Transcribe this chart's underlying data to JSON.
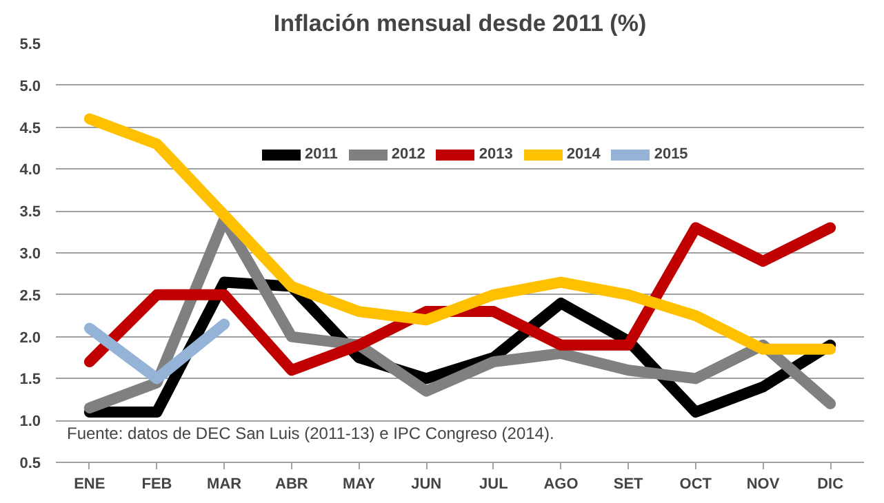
{
  "chart_data": {
    "type": "line",
    "title": "Inflación mensual desde 2011 (%)",
    "categories": [
      "ENE",
      "FEB",
      "MAR",
      "ABR",
      "MAY",
      "JUN",
      "JUL",
      "AGO",
      "SET",
      "OCT",
      "NOV",
      "DIC"
    ],
    "series": [
      {
        "name": "2011",
        "color": "#000000",
        "values": [
          1.1,
          1.1,
          2.65,
          2.6,
          1.75,
          1.5,
          1.75,
          2.4,
          1.95,
          1.1,
          1.4,
          1.9
        ]
      },
      {
        "name": "2012",
        "color": "#808080",
        "values": [
          1.15,
          1.45,
          3.4,
          2.0,
          1.9,
          1.35,
          1.7,
          1.8,
          1.6,
          1.5,
          1.9,
          1.2
        ]
      },
      {
        "name": "2013",
        "color": "#c00000",
        "values": [
          1.7,
          2.5,
          2.5,
          1.6,
          1.9,
          2.3,
          2.3,
          1.9,
          1.9,
          3.3,
          2.9,
          3.3
        ]
      },
      {
        "name": "2014",
        "color": "#ffc000",
        "values": [
          4.6,
          4.3,
          3.45,
          2.6,
          2.3,
          2.2,
          2.5,
          2.65,
          2.5,
          2.25,
          1.85,
          1.85
        ]
      },
      {
        "name": "2015",
        "color": "#95b3d7",
        "values": [
          2.1,
          1.5,
          2.15,
          null,
          null,
          null,
          null,
          null,
          null,
          null,
          null,
          null
        ]
      }
    ],
    "ylim": [
      0.5,
      5.5
    ],
    "yticks": [
      0.5,
      {
        "value": 1,
        "label": "1.0"
      },
      1.5,
      {
        "value": 2,
        "label": "2.0"
      },
      2.5,
      {
        "value": 3,
        "label": "3.0"
      },
      3.5,
      {
        "value": 4,
        "label": "4.0"
      },
      4.5,
      {
        "value": 5,
        "label": "5.0"
      },
      5.5
    ],
    "grid": "y",
    "legend": "top",
    "marker": "none",
    "annotations": [
      "Fuente: datos de DEC San Luis (2011-13) e IPC Congreso (2014)."
    ]
  }
}
